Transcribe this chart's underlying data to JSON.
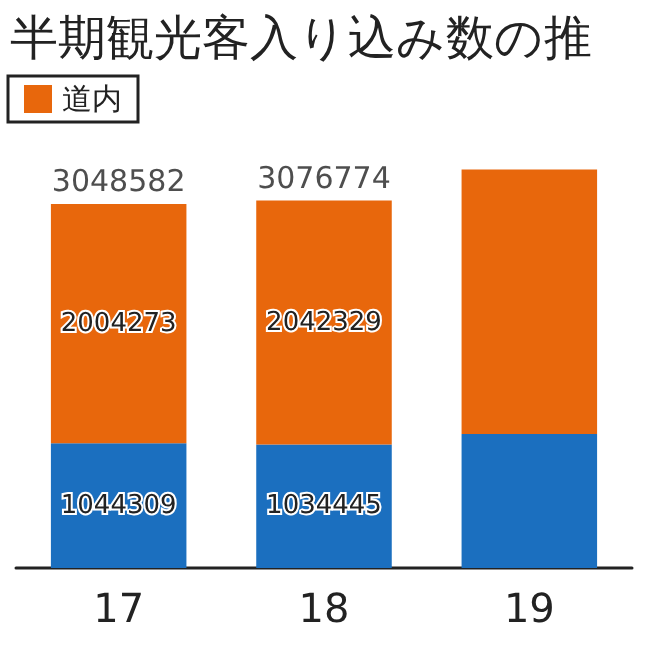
{
  "chart_data": {
    "type": "bar",
    "title": "半期観光客入り込み数の推",
    "categories": [
      "17",
      "18",
      "19"
    ],
    "stacked": true,
    "series": [
      {
        "color": "#1b6fbf",
        "values": [
          1044309,
          1034445,
          1122700
        ],
        "value_labels": [
          "1044309",
          "1034445",
          null
        ]
      },
      {
        "name": "道内",
        "color": "#e8670c",
        "values": [
          2004273,
          2042329,
          2213000
        ],
        "value_labels": [
          "2004273",
          "2042329",
          null
        ]
      }
    ],
    "totals": [
      "3048582",
      "3076774",
      null
    ],
    "legend": "top left"
  }
}
